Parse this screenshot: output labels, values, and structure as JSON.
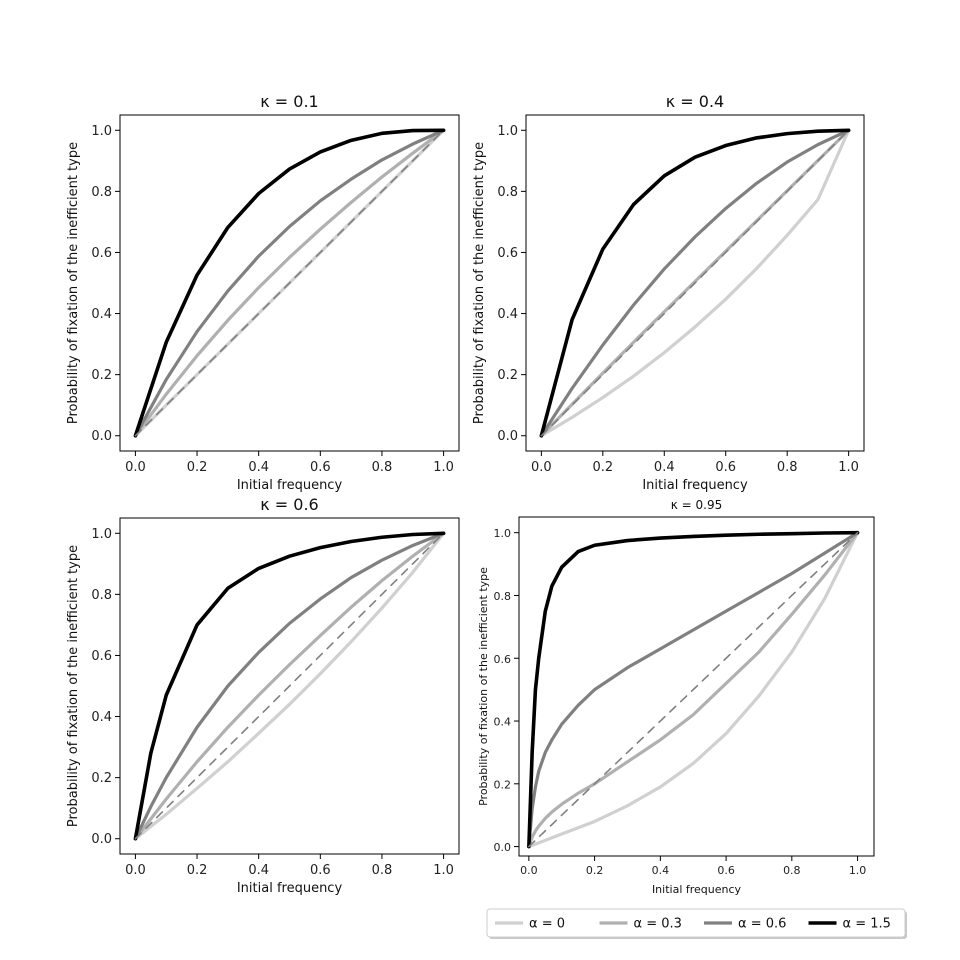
{
  "chart_data": [
    {
      "type": "line",
      "title": "κ = 0.1",
      "xlabel": "Initial frequency",
      "ylabel": "Probability of fixation of the inefficient type",
      "xlim": [
        -0.05,
        1.05
      ],
      "ylim": [
        -0.05,
        1.05
      ],
      "xticks": [
        "0.0",
        "0.2",
        "0.4",
        "0.6",
        "0.8",
        "1.0"
      ],
      "yticks": [
        "0.0",
        "0.2",
        "0.4",
        "0.6",
        "0.8",
        "1.0"
      ],
      "grid": false,
      "x": [
        0,
        0.1,
        0.2,
        0.3,
        0.4,
        0.5,
        0.6,
        0.7,
        0.8,
        0.9,
        1.0
      ],
      "series": [
        {
          "name": "α = 0",
          "color": "#d0d0d0",
          "values": [
            0,
            0.1,
            0.2,
            0.3,
            0.4,
            0.5,
            0.6,
            0.7,
            0.8,
            0.9,
            1.0
          ]
        },
        {
          "name": "α = 0.3",
          "color": "#b0b0b0",
          "values": [
            0,
            0.136,
            0.262,
            0.378,
            0.485,
            0.584,
            0.676,
            0.764,
            0.847,
            0.925,
            1.0
          ]
        },
        {
          "name": "α = 0.6",
          "color": "#808080",
          "values": [
            0,
            0.184,
            0.341,
            0.474,
            0.588,
            0.685,
            0.769,
            0.84,
            0.903,
            0.955,
            1.0
          ]
        },
        {
          "name": "α = 1.5",
          "color": "#000000",
          "values": [
            0,
            0.306,
            0.526,
            0.682,
            0.793,
            0.873,
            0.929,
            0.967,
            0.99,
            0.999,
            1.0
          ]
        },
        {
          "name": "neutral",
          "color": "#808080",
          "dashed": true,
          "values": [
            0,
            0.1,
            0.2,
            0.3,
            0.4,
            0.5,
            0.6,
            0.7,
            0.8,
            0.9,
            1.0
          ]
        }
      ]
    },
    {
      "type": "line",
      "title": "κ = 0.4",
      "xlabel": "Initial frequency",
      "ylabel": "Probability of fixation of the inefficient type",
      "xlim": [
        -0.05,
        1.05
      ],
      "ylim": [
        -0.05,
        1.05
      ],
      "xticks": [
        "0.0",
        "0.2",
        "0.4",
        "0.6",
        "0.8",
        "1.0"
      ],
      "yticks": [
        "0.0",
        "0.2",
        "0.4",
        "0.6",
        "0.8",
        "1.0"
      ],
      "grid": false,
      "x": [
        0,
        0.1,
        0.2,
        0.3,
        0.4,
        0.5,
        0.6,
        0.7,
        0.8,
        0.9,
        1.0
      ],
      "series": [
        {
          "name": "α = 0",
          "color": "#d0d0d0",
          "values": [
            0,
            0.06,
            0.125,
            0.195,
            0.272,
            0.356,
            0.447,
            0.547,
            0.656,
            0.773,
            1.0
          ]
        },
        {
          "name": "α = 0.3",
          "color": "#b0b0b0",
          "values": [
            0,
            0.103,
            0.205,
            0.306,
            0.406,
            0.505,
            0.604,
            0.703,
            0.802,
            0.901,
            1.0
          ]
        },
        {
          "name": "α = 0.6",
          "color": "#808080",
          "values": [
            0,
            0.155,
            0.297,
            0.428,
            0.546,
            0.651,
            0.744,
            0.826,
            0.896,
            0.953,
            1.0
          ]
        },
        {
          "name": "α = 1.5",
          "color": "#000000",
          "values": [
            0,
            0.38,
            0.611,
            0.757,
            0.851,
            0.912,
            0.95,
            0.975,
            0.989,
            0.997,
            1.0
          ]
        },
        {
          "name": "neutral",
          "color": "#808080",
          "dashed": true,
          "values": [
            0,
            0.1,
            0.2,
            0.3,
            0.4,
            0.5,
            0.6,
            0.7,
            0.8,
            0.9,
            1.0
          ]
        }
      ]
    },
    {
      "type": "line",
      "title": "κ = 0.6",
      "xlabel": "Initial frequency",
      "ylabel": "Probability of fixation of the inefficient type",
      "xlim": [
        -0.05,
        1.05
      ],
      "ylim": [
        -0.05,
        1.05
      ],
      "xticks": [
        "0.0",
        "0.2",
        "0.4",
        "0.6",
        "0.8",
        "1.0"
      ],
      "yticks": [
        "0.0",
        "0.2",
        "0.4",
        "0.6",
        "0.8",
        "1.0"
      ],
      "grid": false,
      "x": [
        0,
        0.05,
        0.1,
        0.2,
        0.3,
        0.4,
        0.5,
        0.6,
        0.7,
        0.8,
        0.9,
        1.0
      ],
      "series": [
        {
          "name": "α = 0",
          "color": "#d0d0d0",
          "values": [
            0,
            0.04,
            0.08,
            0.165,
            0.252,
            0.345,
            0.44,
            0.54,
            0.645,
            0.755,
            0.872,
            1.0
          ]
        },
        {
          "name": "α = 0.3",
          "color": "#b0b0b0",
          "values": [
            0,
            0.065,
            0.13,
            0.252,
            0.365,
            0.47,
            0.57,
            0.665,
            0.758,
            0.845,
            0.925,
            1.0
          ]
        },
        {
          "name": "α = 0.6",
          "color": "#808080",
          "values": [
            0,
            0.105,
            0.2,
            0.365,
            0.5,
            0.61,
            0.705,
            0.785,
            0.855,
            0.912,
            0.96,
            1.0
          ]
        },
        {
          "name": "α = 1.5",
          "color": "#000000",
          "values": [
            0,
            0.28,
            0.47,
            0.7,
            0.82,
            0.885,
            0.925,
            0.953,
            0.973,
            0.987,
            0.996,
            1.0
          ]
        },
        {
          "name": "neutral",
          "color": "#808080",
          "dashed": true,
          "values": [
            0,
            0.05,
            0.1,
            0.2,
            0.3,
            0.4,
            0.5,
            0.6,
            0.7,
            0.8,
            0.9,
            1.0
          ]
        }
      ]
    },
    {
      "type": "line",
      "title": "κ = 0.95",
      "xlabel": "Initial frequency",
      "ylabel": "Probability of fixation of the inefficient type",
      "xlim": [
        -0.03,
        1.05
      ],
      "ylim": [
        -0.03,
        1.05
      ],
      "xticks": [
        "0.0",
        "0.2",
        "0.4",
        "0.6",
        "0.8",
        "1.0"
      ],
      "yticks": [
        "0.0",
        "0.2",
        "0.4",
        "0.6",
        "0.8",
        "1.0"
      ],
      "grid": false,
      "x": [
        0,
        0.01,
        0.02,
        0.03,
        0.05,
        0.07,
        0.1,
        0.15,
        0.2,
        0.3,
        0.4,
        0.5,
        0.6,
        0.7,
        0.8,
        0.9,
        1.0
      ],
      "series": [
        {
          "name": "α = 0",
          "color": "#d0d0d0",
          "values": [
            0,
            0.004,
            0.008,
            0.012,
            0.02,
            0.028,
            0.04,
            0.06,
            0.08,
            0.13,
            0.19,
            0.265,
            0.36,
            0.48,
            0.62,
            0.79,
            1.0
          ]
        },
        {
          "name": "α = 0.3",
          "color": "#b0b0b0",
          "values": [
            0,
            0.03,
            0.05,
            0.065,
            0.09,
            0.11,
            0.135,
            0.17,
            0.2,
            0.27,
            0.34,
            0.42,
            0.52,
            0.62,
            0.74,
            0.865,
            1.0
          ]
        },
        {
          "name": "α = 0.6",
          "color": "#808080",
          "values": [
            0,
            0.12,
            0.19,
            0.24,
            0.3,
            0.34,
            0.39,
            0.45,
            0.5,
            0.57,
            0.63,
            0.69,
            0.75,
            0.81,
            0.87,
            0.935,
            1.0
          ]
        },
        {
          "name": "α = 1.5",
          "color": "#000000",
          "values": [
            0,
            0.3,
            0.5,
            0.6,
            0.75,
            0.83,
            0.89,
            0.94,
            0.96,
            0.975,
            0.983,
            0.988,
            0.992,
            0.995,
            0.997,
            0.999,
            1.0
          ]
        },
        {
          "name": "neutral",
          "color": "#808080",
          "dashed": true,
          "values": [
            0,
            0.01,
            0.02,
            0.03,
            0.05,
            0.07,
            0.1,
            0.15,
            0.2,
            0.3,
            0.4,
            0.5,
            0.6,
            0.7,
            0.8,
            0.9,
            1.0
          ]
        }
      ]
    }
  ],
  "legend": {
    "placement": "bottom-right",
    "items": [
      {
        "label": "α = 0",
        "color": "#d0d0d0"
      },
      {
        "label": "α = 0.3",
        "color": "#b0b0b0"
      },
      {
        "label": "α = 0.6",
        "color": "#808080"
      },
      {
        "label": "α = 1.5",
        "color": "#000000"
      }
    ]
  }
}
